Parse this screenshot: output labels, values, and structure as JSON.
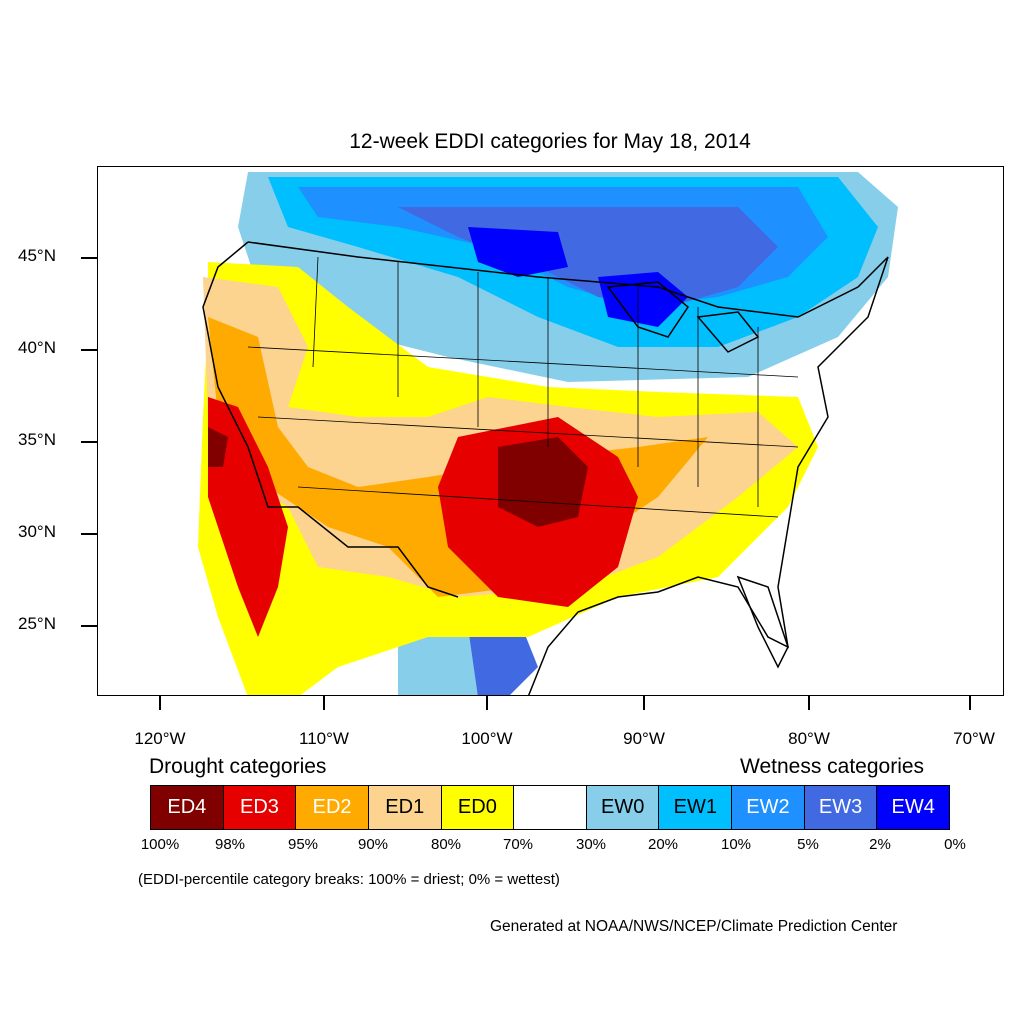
{
  "title": "12-week EDDI categories for May 18, 2014",
  "lat_labels": [
    "45°N",
    "40°N",
    "35°N",
    "30°N",
    "25°N"
  ],
  "lon_labels": [
    "120°W",
    "110°W",
    "100°W",
    "90°W",
    "80°W",
    "70°W"
  ],
  "drought_heading": "Drought categories",
  "wetness_heading": "Wetness categories",
  "legend": [
    {
      "label": "ED4",
      "color": "#800000",
      "text_color": "#ffffff"
    },
    {
      "label": "ED3",
      "color": "#e60000",
      "text_color": "#ffffff"
    },
    {
      "label": "ED2",
      "color": "#ffaa00",
      "text_color": "#ffffff"
    },
    {
      "label": "ED1",
      "color": "#fcd38f",
      "text_color": "#000000"
    },
    {
      "label": "ED0",
      "color": "#ffff00",
      "text_color": "#000000"
    },
    {
      "label": "",
      "color": "#ffffff",
      "text_color": "#000000"
    },
    {
      "label": "EW0",
      "color": "#87ceeb",
      "text_color": "#000000"
    },
    {
      "label": "EW1",
      "color": "#00bfff",
      "text_color": "#000000"
    },
    {
      "label": "EW2",
      "color": "#1e90ff",
      "text_color": "#ffffff"
    },
    {
      "label": "EW3",
      "color": "#4169e1",
      "text_color": "#ffffff"
    },
    {
      "label": "EW4",
      "color": "#0000ff",
      "text_color": "#ffffff"
    }
  ],
  "percent_breaks": [
    "100%",
    "98%",
    "95%",
    "90%",
    "80%",
    "70%",
    "30%",
    "20%",
    "10%",
    "5%",
    "2%",
    "0%"
  ],
  "note": "(EDDI-percentile category breaks: 100% = driest; 0% = wettest)",
  "credit": "Generated at NOAA/NWS/NCEP/Climate Prediction Center"
}
